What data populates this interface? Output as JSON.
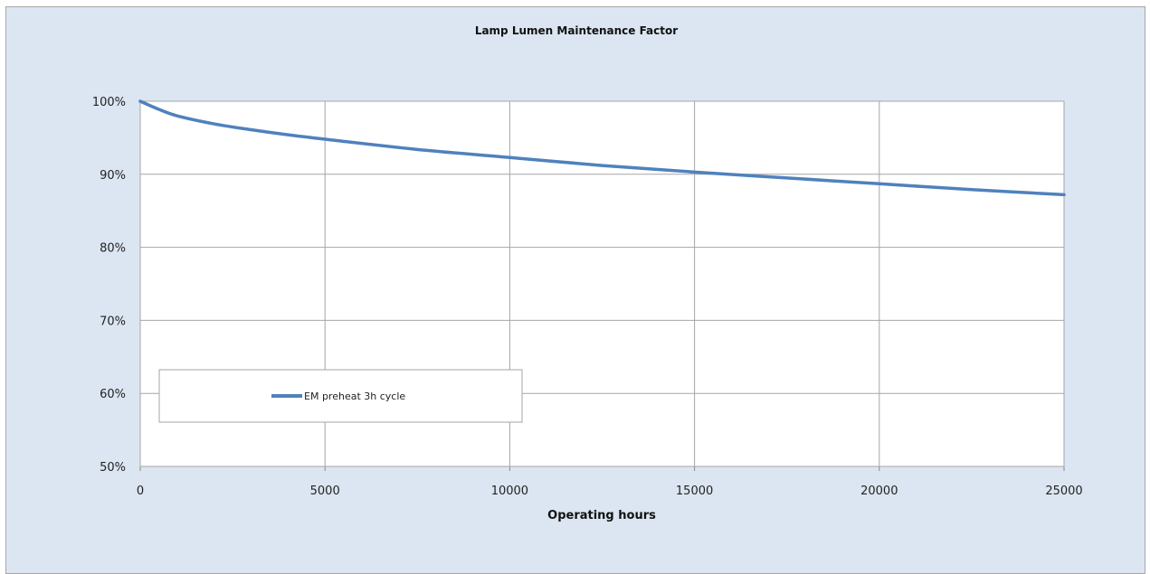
{
  "chart_data": {
    "type": "line",
    "title": "Lamp Lumen Maintenance Factor",
    "xlabel": "Operating hours",
    "ylabel": "",
    "xlim": [
      0,
      25000
    ],
    "ylim": [
      0.5,
      1.0
    ],
    "x_ticks": [
      "0",
      "5000",
      "10000",
      "15000",
      "20000",
      "25000"
    ],
    "y_ticks": [
      "50%",
      "60%",
      "70%",
      "80%",
      "90%",
      "100%"
    ],
    "grid": true,
    "legend_position": "left",
    "series": [
      {
        "name": "EM preheat 3h cycle",
        "color": "#4f81bd",
        "x": [
          0,
          500,
          1000,
          2000,
          3000,
          4000,
          5000,
          7500,
          10000,
          12500,
          15000,
          17500,
          20000,
          22500,
          25000
        ],
        "y": [
          1.0,
          0.989,
          0.98,
          0.969,
          0.961,
          0.954,
          0.948,
          0.934,
          0.923,
          0.912,
          0.903,
          0.895,
          0.887,
          0.879,
          0.872
        ]
      }
    ]
  }
}
